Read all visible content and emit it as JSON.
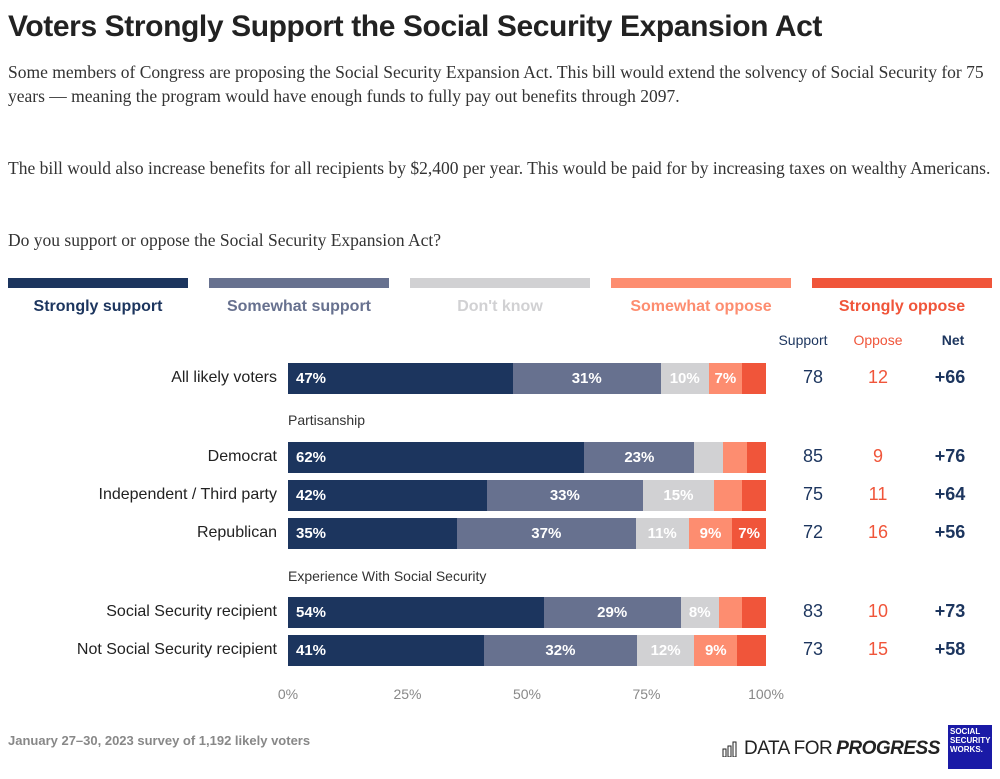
{
  "title": "Voters Strongly Support the Social Security Expansion Act",
  "description": [
    "Some members of Congress are proposing the Social Security Expansion Act. This bill would extend the solvency of Social Security for 75 years — meaning the program would have enough funds to fully pay out benefits through 2097.",
    "The bill would also increase benefits for all recipients by $2,400 per year. This would be paid for by increasing taxes on wealthy Americans.",
    "Do you support or oppose the Social Security Expansion Act?"
  ],
  "columns": {
    "support": "Support",
    "oppose": "Oppose",
    "net": "Net"
  },
  "colors": {
    "support": "#1c355e",
    "oppose": "#f0553a",
    "net": "#1c355e"
  },
  "groups": [
    "Partisanship",
    "Experience With Social Security"
  ],
  "chart_data": {
    "type": "bar",
    "orientation": "horizontal",
    "stacked": true,
    "legend_position": "top",
    "series": [
      {
        "name": "Strongly support",
        "color": "#1c355e",
        "label_color": "#1c355e"
      },
      {
        "name": "Somewhat support",
        "color": "#67718f",
        "label_color": "#67718f"
      },
      {
        "name": "Don't know",
        "color": "#d1d1d3",
        "label_color": "#d1d1d3"
      },
      {
        "name": "Somewhat oppose",
        "color": "#fd8d70",
        "label_color": "#fd8d70"
      },
      {
        "name": "Strongly oppose",
        "color": "#f0553a",
        "label_color": "#f0553a"
      }
    ],
    "categories": [
      "All likely voters",
      "Democrat",
      "Independent / Third party",
      "Republican",
      "Social Security recipient",
      "Not Social Security recipient"
    ],
    "values": [
      [
        47,
        31,
        10,
        7,
        5
      ],
      [
        62,
        23,
        6,
        5,
        4
      ],
      [
        42,
        33,
        15,
        6,
        5
      ],
      [
        35,
        37,
        11,
        9,
        7
      ],
      [
        54,
        29,
        8,
        5,
        5
      ],
      [
        41,
        32,
        12,
        9,
        6
      ]
    ],
    "shown_labels": [
      [
        "47%",
        "31%",
        "10%",
        "7%",
        ""
      ],
      [
        "62%",
        "23%",
        "",
        "",
        ""
      ],
      [
        "42%",
        "33%",
        "15%",
        "",
        ""
      ],
      [
        "35%",
        "37%",
        "11%",
        "9%",
        "7%"
      ],
      [
        "54%",
        "29%",
        "8%",
        "",
        ""
      ],
      [
        "41%",
        "32%",
        "12%",
        "9%",
        ""
      ]
    ],
    "support": [
      78,
      85,
      75,
      72,
      83,
      73
    ],
    "oppose": [
      12,
      9,
      11,
      16,
      10,
      15
    ],
    "net": [
      "+66",
      "+76",
      "+64",
      "+56",
      "+73",
      "+58"
    ],
    "xlim": [
      0,
      100
    ],
    "xticks": [
      "0%",
      "25%",
      "50%",
      "75%",
      "100%"
    ],
    "grid": false
  },
  "footer": "January 27–30, 2023 survey of 1,192 likely voters",
  "brand": {
    "data": "DATA FOR ",
    "progress": "PROGRESS",
    "ssw": "SOCIAL SECURITY WORKS."
  }
}
